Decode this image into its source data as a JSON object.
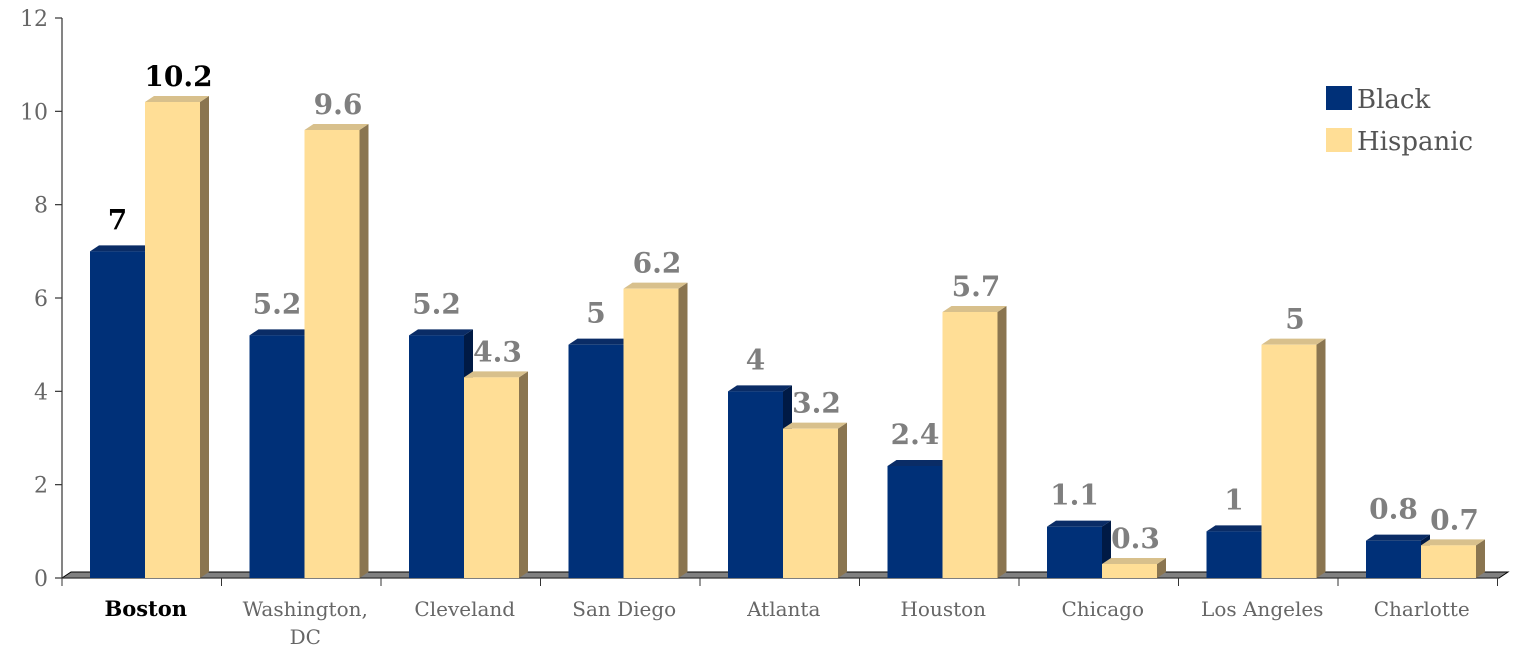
{
  "chart_data": {
    "type": "bar",
    "categories": [
      "Boston",
      "Washington, DC",
      "Cleveland",
      "San Diego",
      "Atlanta",
      "Houston",
      "Chicago",
      "Los Angeles",
      "Charlotte"
    ],
    "highlight_category": "Boston",
    "series": [
      {
        "name": "Black",
        "values": [
          7,
          5.2,
          5.2,
          5,
          4,
          2.4,
          1.1,
          1,
          0.8
        ],
        "labels": [
          "7",
          "5.2",
          "5.2",
          "5",
          "4",
          "2.4",
          "1.1",
          "1",
          "0.8"
        ]
      },
      {
        "name": "Hispanic",
        "values": [
          10.2,
          9.6,
          4.3,
          6.2,
          3.2,
          5.7,
          0.3,
          5,
          0.7
        ],
        "labels": [
          "10.2",
          "9.6",
          "4.3",
          "6.2",
          "3.2",
          "5.7",
          "0.3",
          "5",
          "0.7"
        ]
      }
    ],
    "title": "",
    "xlabel": "",
    "ylabel": "",
    "ylim": [
      0,
      12
    ],
    "yticks": [
      "0",
      "2",
      "4",
      "6",
      "8",
      "10",
      "12"
    ],
    "legend_position": "top-right",
    "grid": false,
    "colors": {
      "Black": "#003078",
      "Hispanic": "#FFDE96",
      "floor": "#808080",
      "axis": "#333333",
      "label": "#7f7f7f",
      "highlight_label": "#000000"
    }
  }
}
